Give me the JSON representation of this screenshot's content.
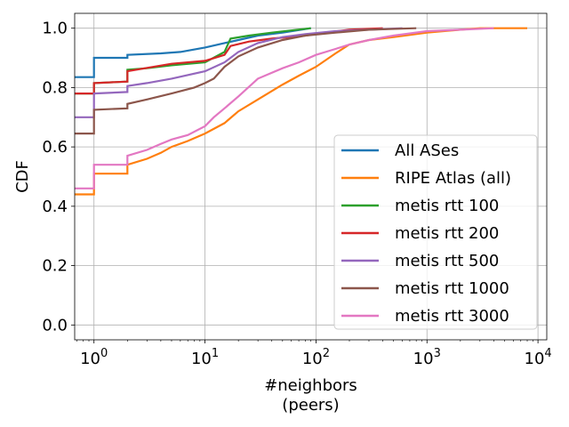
{
  "chart_data": {
    "type": "line",
    "xlabel": "#neighbors",
    "xlabel_sub": "(peers)",
    "ylabel": "CDF",
    "xscale": "log",
    "xlim": [
      0.67,
      12000
    ],
    "ylim": [
      -0.05,
      1.05
    ],
    "grid": true,
    "legend_position": "lower-right",
    "x_ticks": [
      {
        "value": 1,
        "base": "10",
        "exp": "0"
      },
      {
        "value": 10,
        "base": "10",
        "exp": "1"
      },
      {
        "value": 100,
        "base": "10",
        "exp": "2"
      },
      {
        "value": 1000,
        "base": "10",
        "exp": "3"
      },
      {
        "value": 10000,
        "base": "10",
        "exp": "4"
      }
    ],
    "y_ticks": [
      {
        "value": 0.0,
        "label": "0.0"
      },
      {
        "value": 0.2,
        "label": "0.2"
      },
      {
        "value": 0.4,
        "label": "0.4"
      },
      {
        "value": 0.6,
        "label": "0.6"
      },
      {
        "value": 0.8,
        "label": "0.8"
      },
      {
        "value": 1.0,
        "label": "1.0"
      }
    ],
    "series": [
      {
        "name": "All ASes",
        "color": "#1f77b4",
        "points": [
          [
            0.67,
            0.835
          ],
          [
            1,
            0.835
          ],
          [
            1,
            0.9
          ],
          [
            2,
            0.9
          ],
          [
            2,
            0.91
          ],
          [
            4,
            0.915
          ],
          [
            6,
            0.92
          ],
          [
            10,
            0.935
          ],
          [
            15,
            0.95
          ],
          [
            20,
            0.96
          ],
          [
            30,
            0.975
          ],
          [
            50,
            0.985
          ],
          [
            90,
            1.0
          ]
        ]
      },
      {
        "name": "RIPE Atlas (all)",
        "color": "#ff7f0e",
        "points": [
          [
            0.67,
            0.44
          ],
          [
            1,
            0.44
          ],
          [
            1,
            0.51
          ],
          [
            2,
            0.51
          ],
          [
            2,
            0.54
          ],
          [
            3,
            0.56
          ],
          [
            4,
            0.58
          ],
          [
            5,
            0.6
          ],
          [
            7,
            0.62
          ],
          [
            10,
            0.645
          ],
          [
            15,
            0.68
          ],
          [
            20,
            0.72
          ],
          [
            30,
            0.76
          ],
          [
            50,
            0.81
          ],
          [
            70,
            0.84
          ],
          [
            100,
            0.87
          ],
          [
            150,
            0.915
          ],
          [
            200,
            0.945
          ],
          [
            300,
            0.96
          ],
          [
            500,
            0.97
          ],
          [
            1000,
            0.985
          ],
          [
            2000,
            0.995
          ],
          [
            3000,
            1.0
          ],
          [
            8000,
            1.0
          ]
        ]
      },
      {
        "name": "metis rtt 100",
        "color": "#2ca02c",
        "points": [
          [
            0.67,
            0.78
          ],
          [
            1,
            0.78
          ],
          [
            1,
            0.815
          ],
          [
            2,
            0.82
          ],
          [
            2,
            0.86
          ],
          [
            3,
            0.865
          ],
          [
            5,
            0.875
          ],
          [
            10,
            0.885
          ],
          [
            15,
            0.92
          ],
          [
            17,
            0.965
          ],
          [
            25,
            0.975
          ],
          [
            40,
            0.985
          ],
          [
            90,
            1.0
          ]
        ]
      },
      {
        "name": "metis rtt 200",
        "color": "#d62728",
        "points": [
          [
            0.67,
            0.78
          ],
          [
            1,
            0.78
          ],
          [
            1,
            0.815
          ],
          [
            2,
            0.82
          ],
          [
            2,
            0.855
          ],
          [
            5,
            0.88
          ],
          [
            10,
            0.89
          ],
          [
            15,
            0.91
          ],
          [
            17,
            0.94
          ],
          [
            25,
            0.955
          ],
          [
            40,
            0.965
          ],
          [
            80,
            0.975
          ],
          [
            120,
            0.985
          ],
          [
            200,
            0.995
          ],
          [
            400,
            1.0
          ]
        ]
      },
      {
        "name": "metis rtt 500",
        "color": "#9467bd",
        "points": [
          [
            0.67,
            0.7
          ],
          [
            1,
            0.7
          ],
          [
            1,
            0.78
          ],
          [
            2,
            0.785
          ],
          [
            2,
            0.805
          ],
          [
            3,
            0.815
          ],
          [
            5,
            0.83
          ],
          [
            10,
            0.855
          ],
          [
            15,
            0.885
          ],
          [
            20,
            0.92
          ],
          [
            30,
            0.95
          ],
          [
            50,
            0.97
          ],
          [
            80,
            0.98
          ],
          [
            150,
            0.99
          ],
          [
            300,
            0.995
          ],
          [
            600,
            1.0
          ]
        ]
      },
      {
        "name": "metis rtt 1000",
        "color": "#8c564b",
        "points": [
          [
            0.67,
            0.645
          ],
          [
            1,
            0.645
          ],
          [
            1,
            0.725
          ],
          [
            2,
            0.73
          ],
          [
            2,
            0.745
          ],
          [
            3,
            0.76
          ],
          [
            5,
            0.78
          ],
          [
            8,
            0.8
          ],
          [
            10,
            0.815
          ],
          [
            12,
            0.83
          ],
          [
            15,
            0.87
          ],
          [
            20,
            0.905
          ],
          [
            30,
            0.935
          ],
          [
            50,
            0.96
          ],
          [
            80,
            0.975
          ],
          [
            150,
            0.985
          ],
          [
            300,
            0.995
          ],
          [
            800,
            1.0
          ]
        ]
      },
      {
        "name": "metis rtt 3000",
        "color": "#e377c2",
        "points": [
          [
            0.67,
            0.46
          ],
          [
            1,
            0.46
          ],
          [
            1,
            0.54
          ],
          [
            2,
            0.54
          ],
          [
            2,
            0.57
          ],
          [
            3,
            0.59
          ],
          [
            4,
            0.61
          ],
          [
            5,
            0.625
          ],
          [
            7,
            0.64
          ],
          [
            10,
            0.67
          ],
          [
            12,
            0.7
          ],
          [
            15,
            0.73
          ],
          [
            20,
            0.77
          ],
          [
            30,
            0.83
          ],
          [
            50,
            0.865
          ],
          [
            70,
            0.885
          ],
          [
            100,
            0.91
          ],
          [
            150,
            0.93
          ],
          [
            200,
            0.945
          ],
          [
            300,
            0.96
          ],
          [
            500,
            0.975
          ],
          [
            1000,
            0.99
          ],
          [
            2000,
            0.995
          ],
          [
            4000,
            1.0
          ]
        ]
      }
    ]
  }
}
